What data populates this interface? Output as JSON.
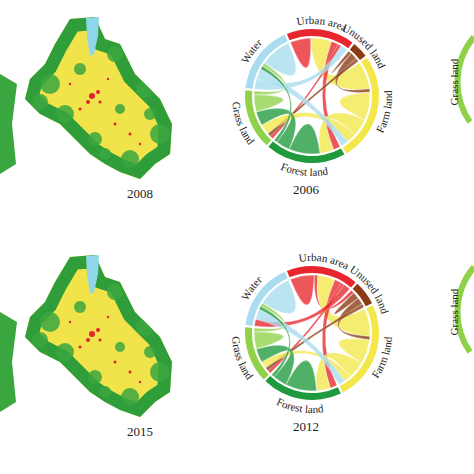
{
  "chart_data": [
    {
      "type": "chord",
      "title": "2006",
      "categories": [
        "Urban area",
        "Unused land",
        "Farm land",
        "Forest land",
        "Grass land",
        "Water"
      ],
      "colors": [
        "#e8262d",
        "#8b3a12",
        "#f2e84a",
        "#1f9a3c",
        "#8fd24a",
        "#a8dcee"
      ],
      "values": [
        [
          6,
          0,
          6,
          2,
          1,
          2
        ],
        [
          0,
          1,
          2,
          0,
          1,
          0
        ],
        [
          8,
          1,
          8,
          5,
          3,
          2
        ],
        [
          2,
          0,
          4,
          9,
          4,
          1
        ],
        [
          1,
          1,
          3,
          4,
          5,
          1
        ],
        [
          3,
          0,
          3,
          1,
          1,
          9
        ]
      ]
    },
    {
      "type": "chord",
      "title": "2012",
      "categories": [
        "Urban area",
        "Unused land",
        "Farm land",
        "Forest land",
        "Grass land",
        "Water"
      ],
      "colors": [
        "#e8262d",
        "#8b3a12",
        "#f2e84a",
        "#1f9a3c",
        "#8fd24a",
        "#a8dcee"
      ],
      "values": [
        [
          7,
          1,
          5,
          2,
          1,
          2
        ],
        [
          1,
          2,
          2,
          0,
          1,
          0
        ],
        [
          8,
          1,
          7,
          5,
          2,
          2
        ],
        [
          2,
          0,
          4,
          9,
          4,
          1
        ],
        [
          1,
          1,
          2,
          4,
          5,
          1
        ],
        [
          2,
          0,
          3,
          1,
          1,
          10
        ]
      ]
    }
  ],
  "maps": [
    {
      "label": "2008"
    },
    {
      "label": "2015"
    }
  ],
  "partial_panels": [
    {
      "label": "Grass land"
    },
    {
      "label": "Grass land"
    }
  ]
}
